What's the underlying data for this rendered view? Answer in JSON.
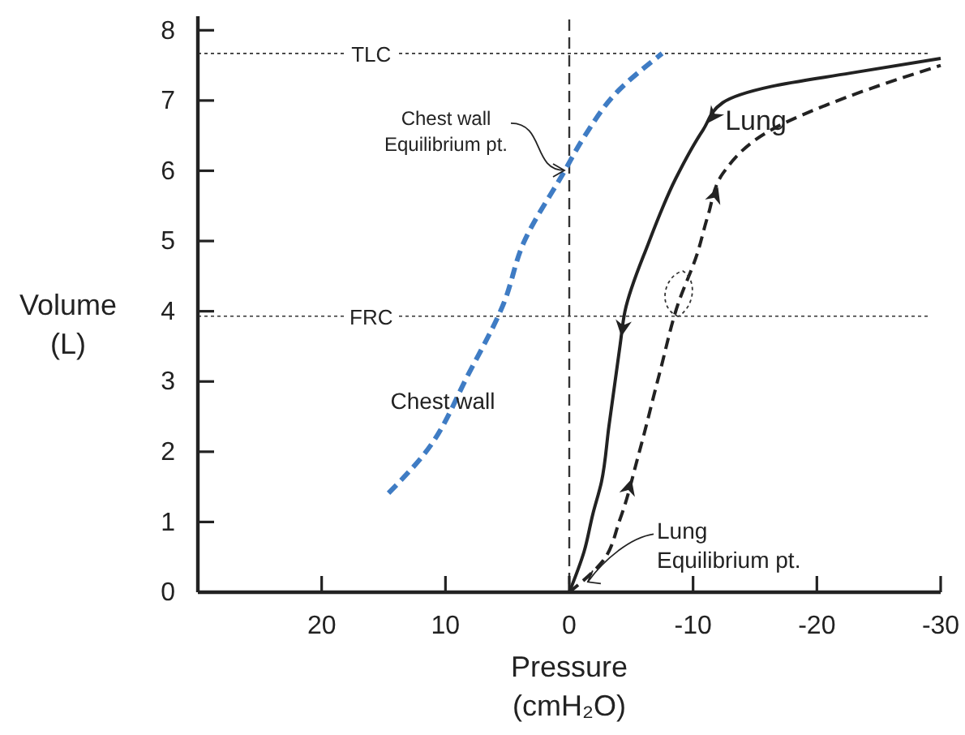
{
  "chart_data": {
    "type": "line",
    "xlabel": "Pressure (cmH₂O)",
    "ylabel": "Volume (L)",
    "xlim": [
      30,
      -30
    ],
    "xticks": [
      20,
      10,
      0,
      -10,
      -20,
      -30
    ],
    "ylim": [
      0,
      8.2
    ],
    "yticks": [
      0,
      1,
      2,
      3,
      4,
      5,
      6,
      7,
      8
    ],
    "grid": false,
    "marker": "none",
    "series": [
      {
        "color": "#3f7cc4",
        "line_style": "dashed",
        "x": [
          14.6,
          11.75,
          8.1,
          5.3,
          3.7,
          0.5,
          -1.3,
          -3.8,
          -7.5
        ],
        "values": [
          1.41,
          1.96,
          3.12,
          4.11,
          4.97,
          5.96,
          6.51,
          7.11,
          7.67
        ]
      },
      {
        "color": "#222222",
        "line_style": "solid",
        "x": [
          -30,
          -22.7,
          -16.3,
          -12.4,
          -10.8,
          -8.6,
          -6.4,
          -4.5,
          -4.1,
          -3.2,
          -2.6,
          -1.9,
          -1.2,
          0
        ],
        "values": [
          7.6,
          7.39,
          7.2,
          6.97,
          6.58,
          5.89,
          4.97,
          4.0,
          3.51,
          2.36,
          1.57,
          1.11,
          0.58,
          0
        ]
      },
      {
        "color": "#222222",
        "line_style": "dashed",
        "x": [
          0,
          -2.6,
          -4.1,
          -5.6,
          -7.3,
          -8.8,
          -10.3,
          -11.2,
          -12.4,
          -16.3,
          -22.3,
          -30
        ],
        "values": [
          0,
          0.42,
          1.04,
          1.96,
          3.12,
          4.11,
          4.8,
          5.36,
          5.96,
          6.58,
          7.04,
          7.5
        ]
      }
    ],
    "ref_lines": [
      {
        "axis": "y",
        "value": 7.67,
        "label": "TLC",
        "line_style": "dotted"
      },
      {
        "axis": "y",
        "value": 3.93,
        "label": "FRC",
        "line_style": "dotted"
      },
      {
        "axis": "x",
        "value": 0,
        "label": null,
        "line_style": "dashed"
      }
    ],
    "annotations": [
      {
        "text": "Chest wall Equilibrium pt.",
        "x": 0,
        "y": 5.96
      },
      {
        "text": "Lung Equilibrium pt.",
        "x": -1.5,
        "y": 0.1
      },
      "Chest wall",
      "Lung"
    ]
  }
}
